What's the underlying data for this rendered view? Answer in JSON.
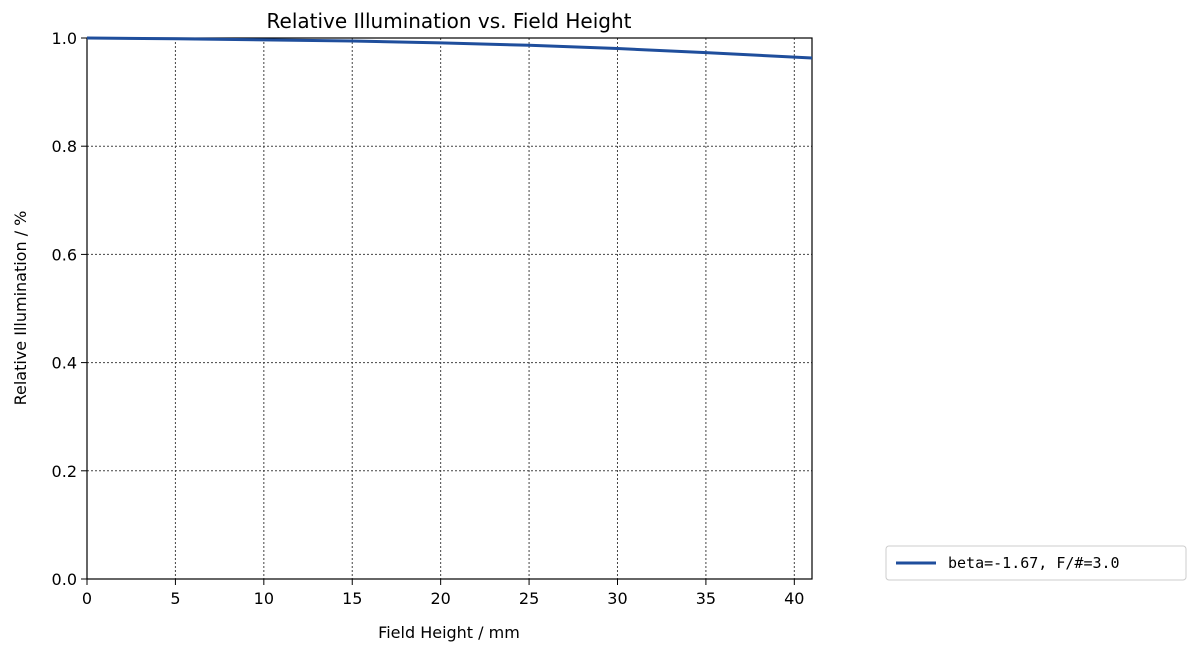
{
  "chart_data": {
    "type": "line",
    "title": "Relative Illumination vs. Field Height",
    "xlabel": "Field Height / mm",
    "ylabel": "Relative Illumination / %",
    "xlim": [
      0,
      41
    ],
    "ylim": [
      0.0,
      1.0
    ],
    "xticks": [
      "0",
      "5",
      "10",
      "15",
      "20",
      "25",
      "30",
      "35",
      "40"
    ],
    "yticks": [
      "0.0",
      "0.2",
      "0.4",
      "0.6",
      "0.8",
      "1.0"
    ],
    "grid": true,
    "legend_position": "outside-right-bottom",
    "series": [
      {
        "name": "beta=-1.67, F/#=3.0",
        "color": "#1f4e9c",
        "x": [
          0,
          5,
          10,
          15,
          20,
          25,
          30,
          35,
          41
        ],
        "y": [
          1.0,
          0.9985,
          0.9965,
          0.9945,
          0.991,
          0.9865,
          0.9805,
          0.973,
          0.963
        ]
      }
    ]
  }
}
